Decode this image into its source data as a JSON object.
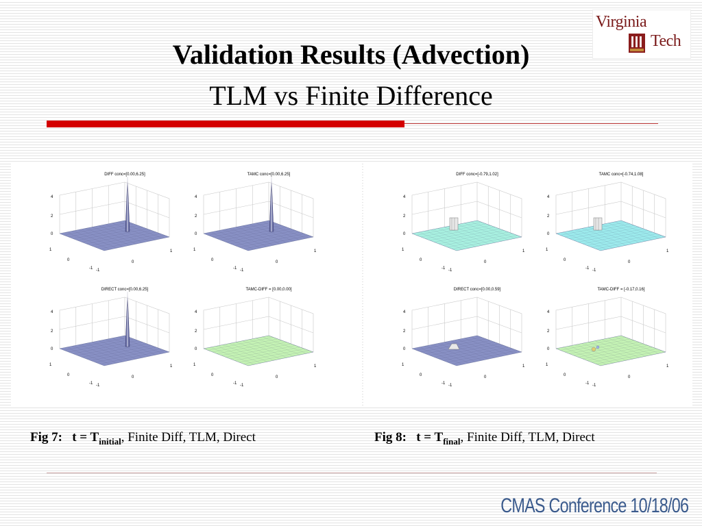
{
  "logo": {
    "line1": "Virginia",
    "line2": "Tech"
  },
  "title": {
    "main": "Validation Results (Advection)",
    "sub": "TLM vs Finite Difference"
  },
  "figures": [
    {
      "plots": [
        {
          "title": "DIFF conc=[0.00,6.25]",
          "surface": "#8890c4",
          "feature": "spike"
        },
        {
          "title": "TAMC conc=[0.00,6.25]",
          "surface": "#8890c4",
          "feature": "spike"
        },
        {
          "title": "DIRECT conc=[0.00,6.25]",
          "surface": "#8890c4",
          "feature": "spike"
        },
        {
          "title": "TAMC-DIFF = [0.00,0.00]",
          "surface": "#c4f2b4",
          "feature": "none"
        }
      ]
    },
    {
      "plots": [
        {
          "title": "DIFF conc=[-0.79,1.02]",
          "surface": "#a8f0e0",
          "feature": "bump"
        },
        {
          "title": "TAMC conc=[-0.74,1.08]",
          "surface": "#9ceaec",
          "feature": "bump"
        },
        {
          "title": "DIRECT conc=[0.00,0.59]",
          "surface": "#8890c4",
          "feature": "small-bump"
        },
        {
          "title": "TAMC-DIFF = [-0.17,0.16]",
          "surface": "#c4f2b4",
          "feature": "ripple"
        }
      ]
    }
  ],
  "axis_ticks": {
    "z": [
      "4",
      "2",
      "0"
    ],
    "y": [
      "1",
      "0",
      "-1"
    ],
    "x": [
      "-1",
      "0",
      "1"
    ]
  },
  "captions": [
    {
      "label": "Fig 7:",
      "t_prefix": "t = T",
      "t_sub": "initial",
      "rest": ", Finite Diff, TLM, Direct"
    },
    {
      "label": "Fig 8:",
      "t_prefix": "t = T",
      "t_sub": "final",
      "rest": ", Finite Diff, TLM, Direct"
    }
  ],
  "footer": "CMAS Conference 10/18/06",
  "colors": {
    "accent_red": "#d40000",
    "footer_blue": "#3a5a8c",
    "logo_maroon": "#7a1a1a"
  }
}
